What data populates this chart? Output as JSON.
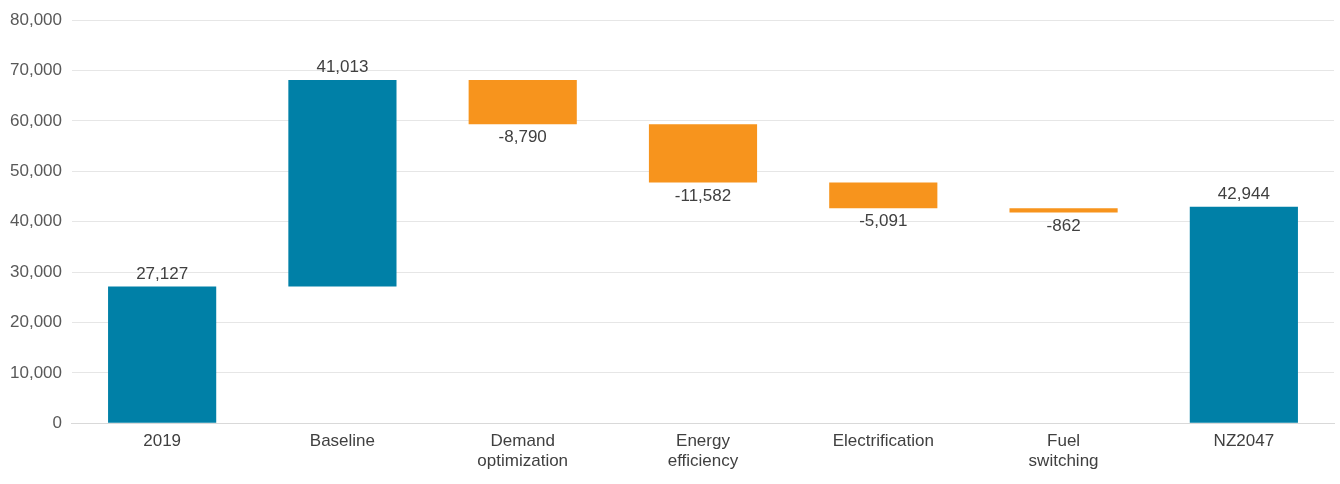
{
  "chart_data": {
    "type": "bar",
    "categories": [
      "2019",
      "Baseline",
      "Demand optimization",
      "Energy efficiency",
      "Electrification",
      "Fuel switching",
      "NZ2047"
    ],
    "values": [
      27127,
      41013,
      -8790,
      -11582,
      -5091,
      -862,
      42944
    ],
    "base": [
      0,
      27127,
      68140,
      59350,
      47768,
      42677,
      0
    ],
    "colors": [
      "#0080a7",
      "#0080a7",
      "#f7941d",
      "#f7941d",
      "#f7941d",
      "#f7941d",
      "#0080a7"
    ],
    "value_labels": [
      "27,127",
      "41,013",
      "-8,790",
      "-11,582",
      "-5,091",
      "-862",
      "42,944"
    ],
    "ylim": [
      0,
      80000
    ],
    "yticks": [
      {
        "value": 0,
        "label": "0"
      },
      {
        "value": 10000,
        "label": "10,000"
      },
      {
        "value": 20000,
        "label": "20,000"
      },
      {
        "value": 30000,
        "label": "30,000"
      },
      {
        "value": 40000,
        "label": "40,000"
      },
      {
        "value": 50000,
        "label": "50,000"
      },
      {
        "value": 60000,
        "label": "60,000"
      },
      {
        "value": 70000,
        "label": "70,000"
      },
      {
        "value": 80000,
        "label": "80,000"
      }
    ],
    "grid": "y",
    "legend": false
  }
}
